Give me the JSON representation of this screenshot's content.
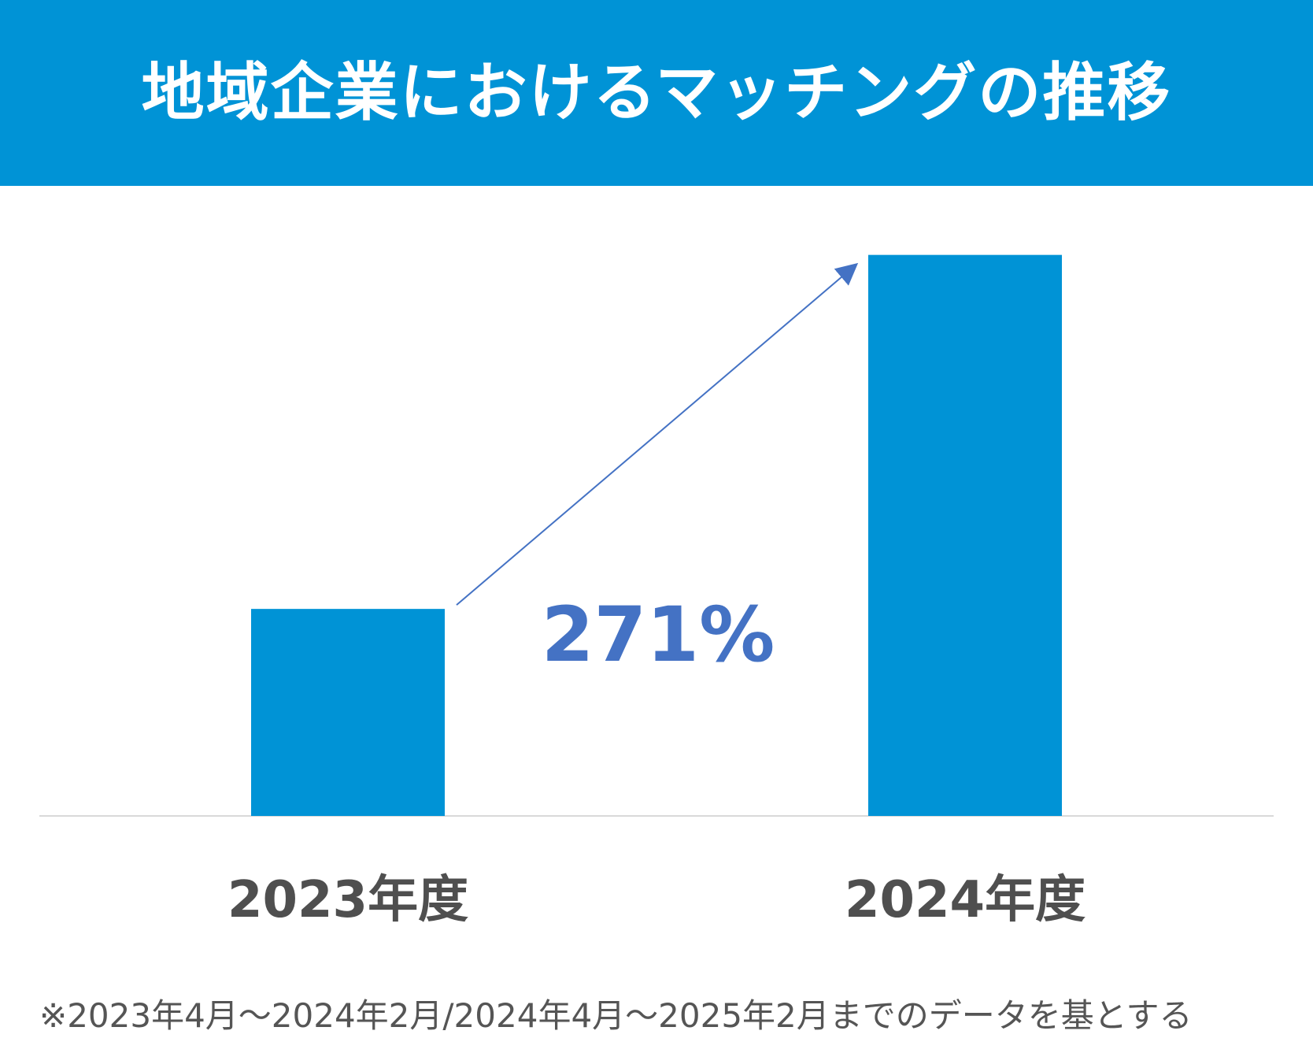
{
  "header": {
    "title": "地域企業におけるマッチングの推移"
  },
  "chart_data": {
    "type": "bar",
    "title": "地域企業におけるマッチングの推移",
    "categories": [
      "2023年度",
      "2024年度"
    ],
    "values": [
      100,
      271
    ],
    "ylim": [
      0,
      280
    ],
    "grid": false,
    "legend": "none",
    "annotation": "271%",
    "colors": {
      "bar": "#0093d6",
      "arrow": "#4472c4",
      "annotation": "#4472c4",
      "axis": "#d9d9d9"
    }
  },
  "footnote": "※2023年4月～2024年2月/2024年4月～2025年2月までのデータを基とする"
}
